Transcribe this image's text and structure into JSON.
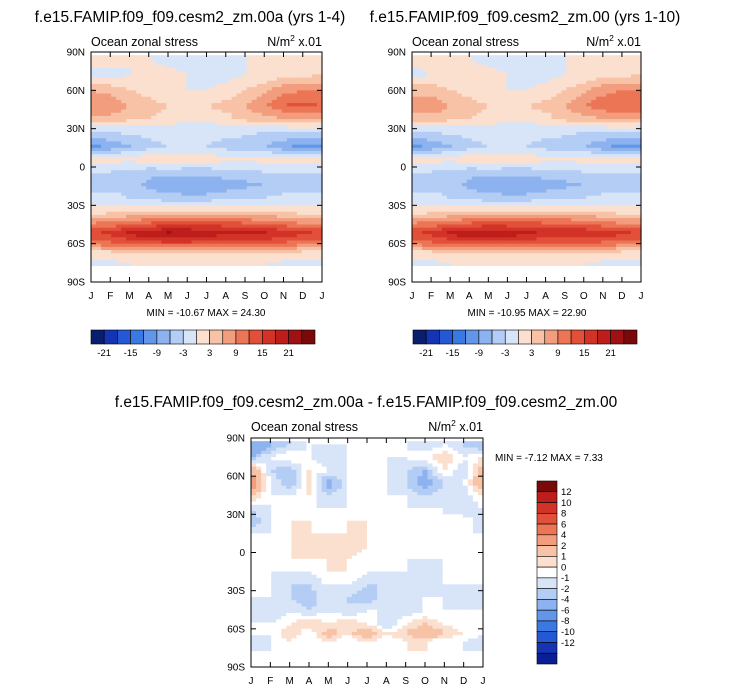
{
  "chart_data": [
    {
      "type": "heatmap",
      "title": "f.e15.FAMIP.f09_f09.cesm2_zm.00a (yrs 1-4)",
      "subtitle_left": "Ocean zonal stress",
      "subtitle_right": "N/m",
      "units_sup": "2",
      "units_suffix": " x.01",
      "x_ticks": [
        "J",
        "F",
        "M",
        "A",
        "M",
        "J",
        "J",
        "A",
        "S",
        "O",
        "N",
        "D",
        "J"
      ],
      "y_ticks": [
        "90N",
        "60N",
        "30N",
        "0",
        "30S",
        "60S",
        "90S"
      ],
      "xlim": [
        0,
        12
      ],
      "ylim": [
        -90,
        90
      ],
      "stats": "MIN = -10.67 MAX =  24.30",
      "colorbar_labels": [
        "-21",
        "-15",
        "-9",
        "-3",
        "3",
        "9",
        "15",
        "21"
      ],
      "levels": [
        -24,
        -21,
        -18,
        -15,
        -12,
        -9,
        -6,
        -3,
        0,
        3,
        6,
        9,
        12,
        15,
        18,
        21,
        24
      ],
      "colors": [
        "#0a1e6e",
        "#1434b4",
        "#2458d6",
        "#3a78e2",
        "#6296e8",
        "#8cb2ef",
        "#b3cdf5",
        "#d8e5f8",
        "#fbe0cf",
        "#f7c2a6",
        "#f29d7d",
        "#ec7556",
        "#e2503a",
        "#d33327",
        "#be1e1b",
        "#9e1214",
        "#7a0a0a"
      ],
      "bands": [
        {
          "lat": 85,
          "values": [
            1,
            1,
            0,
            0,
            -1,
            -1,
            -1,
            -1,
            0,
            0,
            1,
            1,
            1
          ]
        },
        {
          "lat": 72,
          "values": [
            -1,
            -1,
            0,
            1,
            1,
            0,
            -1,
            -1,
            0,
            1,
            2,
            2,
            3
          ]
        },
        {
          "lat": 60,
          "values": [
            6,
            5,
            3,
            2,
            1,
            0,
            0,
            1,
            3,
            5,
            8,
            9,
            9
          ]
        },
        {
          "lat": 48,
          "values": [
            9,
            8,
            6,
            4,
            3,
            2,
            3,
            4,
            6,
            9,
            12,
            13,
            12
          ]
        },
        {
          "lat": 38,
          "values": [
            5,
            5,
            4,
            3,
            2,
            1,
            1,
            2,
            4,
            5,
            6,
            7,
            6
          ]
        },
        {
          "lat": 28,
          "values": [
            -3,
            -3,
            -2,
            -2,
            -2,
            -2,
            -2,
            -2,
            -2,
            -3,
            -3,
            -3,
            -3
          ]
        },
        {
          "lat": 16,
          "values": [
            -10,
            -8,
            -6,
            -4,
            -3,
            -3,
            -3,
            -4,
            -5,
            -6,
            -8,
            -10,
            -10
          ]
        },
        {
          "lat": 6,
          "values": [
            1,
            1,
            1,
            2,
            3,
            2,
            2,
            1,
            1,
            1,
            1,
            1,
            1
          ]
        },
        {
          "lat": -4,
          "values": [
            -3,
            -3,
            -4,
            -5,
            -5,
            -5,
            -5,
            -4,
            -4,
            -3,
            -3,
            -3,
            -3
          ]
        },
        {
          "lat": -14,
          "values": [
            -4,
            -4,
            -5,
            -7,
            -8,
            -9,
            -9,
            -8,
            -7,
            -6,
            -5,
            -4,
            -4
          ]
        },
        {
          "lat": -24,
          "values": [
            -2,
            -2,
            -3,
            -4,
            -5,
            -5,
            -5,
            -4,
            -3,
            -3,
            -2,
            -2,
            -2
          ]
        },
        {
          "lat": -34,
          "values": [
            1,
            1,
            2,
            2,
            3,
            3,
            3,
            3,
            2,
            2,
            2,
            1,
            1
          ]
        },
        {
          "lat": -44,
          "values": [
            9,
            10,
            11,
            12,
            13,
            14,
            14,
            13,
            12,
            11,
            10,
            9,
            9
          ]
        },
        {
          "lat": -52,
          "values": [
            15,
            16,
            19,
            21,
            22,
            21,
            20,
            19,
            19,
            19,
            18,
            16,
            15
          ]
        },
        {
          "lat": -60,
          "values": [
            10,
            11,
            12,
            13,
            14,
            14,
            13,
            12,
            12,
            12,
            11,
            10,
            10
          ]
        },
        {
          "lat": -67,
          "values": [
            2,
            2,
            3,
            3,
            2,
            2,
            2,
            2,
            3,
            3,
            3,
            2,
            2
          ]
        },
        {
          "lat": -76,
          "values": [
            -1,
            -1,
            0,
            0,
            0,
            0,
            0,
            0,
            0,
            0,
            -1,
            -1,
            -1
          ]
        }
      ]
    },
    {
      "type": "heatmap",
      "title": "f.e15.FAMIP.f09_f09.cesm2_zm.00 (yrs 1-10)",
      "subtitle_left": "Ocean zonal stress",
      "subtitle_right": "N/m",
      "units_sup": "2",
      "units_suffix": " x.01",
      "x_ticks": [
        "J",
        "F",
        "M",
        "A",
        "M",
        "J",
        "J",
        "A",
        "S",
        "O",
        "N",
        "D",
        "J"
      ],
      "y_ticks": [
        "90N",
        "60N",
        "30N",
        "0",
        "30S",
        "60S",
        "90S"
      ],
      "xlim": [
        0,
        12
      ],
      "ylim": [
        -90,
        90
      ],
      "stats": "MIN = -10.95 MAX =  22.90",
      "colorbar_labels": [
        "-21",
        "-15",
        "-9",
        "-3",
        "3",
        "9",
        "15",
        "21"
      ],
      "levels": [
        -24,
        -21,
        -18,
        -15,
        -12,
        -9,
        -6,
        -3,
        0,
        3,
        6,
        9,
        12,
        15,
        18,
        21,
        24
      ],
      "colors": [
        "#0a1e6e",
        "#1434b4",
        "#2458d6",
        "#3a78e2",
        "#6296e8",
        "#8cb2ef",
        "#b3cdf5",
        "#d8e5f8",
        "#fbe0cf",
        "#f7c2a6",
        "#f29d7d",
        "#ec7556",
        "#e2503a",
        "#d33327",
        "#be1e1b",
        "#9e1214",
        "#7a0a0a"
      ],
      "bands": [
        {
          "lat": 85,
          "values": [
            1,
            1,
            0,
            0,
            -1,
            -1,
            -1,
            -1,
            0,
            0,
            1,
            1,
            1
          ]
        },
        {
          "lat": 72,
          "values": [
            -1,
            0,
            0,
            1,
            1,
            0,
            -1,
            -1,
            0,
            1,
            2,
            2,
            3
          ]
        },
        {
          "lat": 60,
          "values": [
            5,
            5,
            3,
            2,
            1,
            0,
            0,
            1,
            3,
            5,
            8,
            9,
            9
          ]
        },
        {
          "lat": 48,
          "values": [
            8,
            8,
            6,
            4,
            3,
            2,
            3,
            4,
            6,
            9,
            11,
            12,
            11
          ]
        },
        {
          "lat": 38,
          "values": [
            5,
            5,
            4,
            3,
            2,
            1,
            1,
            2,
            4,
            5,
            6,
            7,
            6
          ]
        },
        {
          "lat": 28,
          "values": [
            -3,
            -3,
            -2,
            -2,
            -2,
            -2,
            -2,
            -2,
            -2,
            -3,
            -3,
            -3,
            -3
          ]
        },
        {
          "lat": 16,
          "values": [
            -10,
            -8,
            -6,
            -4,
            -3,
            -3,
            -3,
            -4,
            -5,
            -6,
            -8,
            -10,
            -10
          ]
        },
        {
          "lat": 6,
          "values": [
            1,
            1,
            1,
            2,
            3,
            2,
            2,
            1,
            1,
            1,
            1,
            1,
            1
          ]
        },
        {
          "lat": -4,
          "values": [
            -3,
            -3,
            -4,
            -5,
            -5,
            -5,
            -5,
            -4,
            -4,
            -3,
            -3,
            -3,
            -3
          ]
        },
        {
          "lat": -14,
          "values": [
            -4,
            -4,
            -5,
            -7,
            -8,
            -9,
            -9,
            -8,
            -7,
            -6,
            -5,
            -4,
            -4
          ]
        },
        {
          "lat": -24,
          "values": [
            -2,
            -2,
            -3,
            -4,
            -5,
            -5,
            -5,
            -4,
            -3,
            -3,
            -2,
            -2,
            -2
          ]
        },
        {
          "lat": -34,
          "values": [
            1,
            1,
            2,
            2,
            3,
            3,
            3,
            3,
            2,
            2,
            2,
            1,
            1
          ]
        },
        {
          "lat": -44,
          "values": [
            9,
            10,
            11,
            12,
            13,
            13,
            13,
            12,
            12,
            11,
            10,
            9,
            9
          ]
        },
        {
          "lat": -52,
          "values": [
            15,
            16,
            19,
            21,
            21,
            20,
            19,
            18,
            18,
            18,
            17,
            16,
            15
          ]
        },
        {
          "lat": -60,
          "values": [
            10,
            11,
            12,
            13,
            13,
            13,
            12,
            12,
            12,
            12,
            11,
            10,
            10
          ]
        },
        {
          "lat": -67,
          "values": [
            2,
            2,
            3,
            3,
            2,
            2,
            2,
            2,
            3,
            3,
            3,
            2,
            2
          ]
        },
        {
          "lat": -76,
          "values": [
            -1,
            -1,
            0,
            0,
            0,
            0,
            0,
            0,
            0,
            0,
            -1,
            -1,
            -1
          ]
        }
      ]
    },
    {
      "type": "heatmap",
      "title": "f.e15.FAMIP.f09_f09.cesm2_zm.00a - f.e15.FAMIP.f09_f09.cesm2_zm.00",
      "subtitle_left": "Ocean zonal stress",
      "subtitle_right": "N/m",
      "units_sup": "2",
      "units_suffix": " x.01",
      "x_ticks": [
        "J",
        "F",
        "M",
        "A",
        "M",
        "J",
        "J",
        "A",
        "S",
        "O",
        "N",
        "D",
        "J"
      ],
      "y_ticks": [
        "90N",
        "60N",
        "30N",
        "0",
        "30S",
        "60S",
        "90S"
      ],
      "xlim": [
        0,
        12
      ],
      "ylim": [
        -90,
        90
      ],
      "stats": "MIN =  -7.12 MAX =   7.33",
      "colorbar_labels": [
        "12",
        "10",
        "8",
        "6",
        "4",
        "2",
        "1",
        "0",
        "-1",
        "-2",
        "-4",
        "-6",
        "-8",
        "-10",
        "-12"
      ],
      "levels": [
        -14,
        -12,
        -10,
        -8,
        -6,
        -4,
        -2,
        -1,
        0,
        1,
        2,
        4,
        6,
        8,
        10,
        12,
        14
      ],
      "colors": [
        "#0a1e96",
        "#1434b4",
        "#2458d6",
        "#3a78e2",
        "#6296e8",
        "#8cb2ef",
        "#b3cdf5",
        "#d8e5f8",
        "#ffffff",
        "#fbe0cf",
        "#f7c2a6",
        "#f29d7d",
        "#ec7556",
        "#e2503a",
        "#d33327",
        "#be1e1b",
        "#7a0a0a"
      ],
      "bands": [
        {
          "lat": 84,
          "values": [
            -4,
            -2,
            -1,
            0,
            0,
            0,
            0,
            0,
            0,
            -1,
            0,
            -1,
            -2
          ]
        },
        {
          "lat": 75,
          "values": [
            -2,
            0,
            1,
            0,
            -1,
            0,
            0,
            0,
            0,
            1,
            2,
            0,
            1
          ]
        },
        {
          "lat": 64,
          "values": [
            4,
            -1,
            -2,
            1,
            0,
            0,
            1,
            0,
            -1,
            -2,
            1,
            -1,
            3
          ]
        },
        {
          "lat": 55,
          "values": [
            6,
            0,
            -2,
            1,
            -3,
            0,
            1,
            0,
            -1,
            -3,
            -1,
            0,
            4
          ]
        },
        {
          "lat": 44,
          "values": [
            2,
            0,
            0,
            1,
            -1,
            0,
            1,
            0,
            0,
            -1,
            0,
            -1,
            1
          ]
        },
        {
          "lat": 34,
          "values": [
            -1,
            0,
            1,
            0,
            0,
            0,
            1,
            0,
            0,
            0,
            0,
            -1,
            0
          ]
        },
        {
          "lat": 24,
          "values": [
            -2,
            0,
            1,
            1,
            0,
            1,
            1,
            0,
            0,
            0,
            0,
            1,
            -1
          ]
        },
        {
          "lat": 14,
          "values": [
            0,
            0,
            1,
            1,
            1,
            1,
            1,
            0,
            0,
            1,
            1,
            0,
            0
          ]
        },
        {
          "lat": 4,
          "values": [
            0,
            1,
            1,
            1,
            1,
            2,
            1,
            1,
            0,
            0,
            0,
            0,
            0
          ]
        },
        {
          "lat": -6,
          "values": [
            0,
            0,
            1,
            1,
            1,
            1,
            0,
            0,
            0,
            0,
            0,
            0,
            0
          ]
        },
        {
          "lat": -16,
          "values": [
            0,
            0,
            0,
            0,
            1,
            1,
            0,
            0,
            0,
            -1,
            0,
            0,
            0
          ]
        },
        {
          "lat": -26,
          "values": [
            0,
            0,
            -1,
            -1,
            0,
            0,
            -1,
            -1,
            0,
            -1,
            0,
            0,
            0
          ]
        },
        {
          "lat": -36,
          "values": [
            0,
            0,
            -1,
            -2,
            0,
            -1,
            -2,
            0,
            -1,
            0,
            0,
            -1,
            0
          ]
        },
        {
          "lat": -46,
          "values": [
            0,
            -1,
            0,
            -1,
            0,
            -1,
            0,
            0,
            -1,
            0,
            0,
            0,
            0
          ]
        },
        {
          "lat": -56,
          "values": [
            0,
            0,
            1,
            2,
            1,
            2,
            1,
            -1,
            1,
            2,
            1,
            0,
            0
          ]
        },
        {
          "lat": -64,
          "values": [
            0,
            0,
            2,
            0,
            3,
            1,
            4,
            1,
            2,
            4,
            2,
            1,
            0
          ]
        },
        {
          "lat": -70,
          "values": [
            -1,
            0,
            1,
            0,
            1,
            0,
            1,
            0,
            1,
            1,
            0,
            0,
            -1
          ]
        }
      ]
    }
  ]
}
